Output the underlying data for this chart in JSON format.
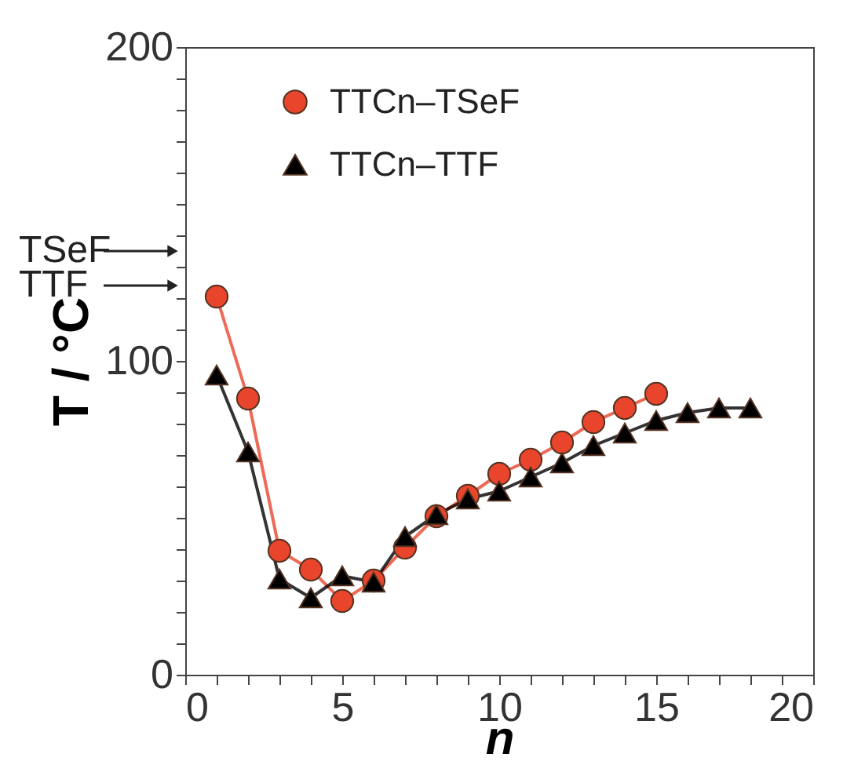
{
  "chart_data": {
    "type": "line",
    "xlabel": "n",
    "ylabel": "T / °C",
    "xlim": [
      0,
      20
    ],
    "ylim": [
      0,
      200
    ],
    "xticks": [
      0,
      {
        "value": 1,
        "label": null
      },
      {
        "value": 2,
        "label": null
      },
      {
        "value": 3,
        "label": null
      },
      {
        "value": 4,
        "label": null
      },
      5,
      {
        "value": 6,
        "label": null
      },
      {
        "value": 7,
        "label": null
      },
      {
        "value": 8,
        "label": null
      },
      {
        "value": 9,
        "label": null
      },
      10,
      {
        "value": 11,
        "label": null
      },
      {
        "value": 12,
        "label": null
      },
      {
        "value": 13,
        "label": null
      },
      {
        "value": 14,
        "label": null
      },
      15,
      {
        "value": 16,
        "label": null
      },
      {
        "value": 17,
        "label": null
      },
      {
        "value": 18,
        "label": null
      },
      {
        "value": 19,
        "label": null
      },
      20
    ],
    "yticks": [
      0,
      {
        "value": 10,
        "label": null
      },
      {
        "value": 20,
        "label": null
      },
      {
        "value": 30,
        "label": null
      },
      {
        "value": 40,
        "label": null
      },
      {
        "value": 50,
        "label": null
      },
      {
        "value": 60,
        "label": null
      },
      {
        "value": 70,
        "label": null
      },
      {
        "value": 80,
        "label": null
      },
      {
        "value": 90,
        "label": null
      },
      100,
      {
        "value": 110,
        "label": null
      },
      {
        "value": 120,
        "label": null
      },
      {
        "value": 130,
        "label": null
      },
      {
        "value": 140,
        "label": null
      },
      {
        "value": 150,
        "label": null
      },
      {
        "value": 160,
        "label": null
      },
      {
        "value": 170,
        "label": null
      },
      {
        "value": 180,
        "label": null
      },
      {
        "value": 190,
        "label": null
      },
      200
    ],
    "grid": false,
    "legend": "top",
    "series": [
      {
        "name": "TTCn–TSeF",
        "color": "#e8452c",
        "marker": "circle",
        "x": [
          1,
          2,
          3,
          4,
          5,
          6,
          7,
          8,
          9,
          10,
          11,
          12,
          13,
          14,
          15
        ],
        "values": [
          120.5,
          88,
          39.5,
          33.5,
          23.5,
          30,
          40.5,
          50.5,
          57,
          64,
          68.5,
          74,
          80.5,
          85,
          89.5
        ]
      },
      {
        "name": "TTCn–TTF",
        "color": "#000000",
        "marker": "triangle",
        "x": [
          1,
          2,
          3,
          4,
          5,
          6,
          7,
          8,
          9,
          10,
          11,
          12,
          13,
          14,
          15,
          16,
          17,
          18
        ],
        "values": [
          95.5,
          71,
          30.5,
          24.5,
          31.5,
          29.5,
          44,
          51,
          56,
          58.5,
          63,
          67.5,
          73,
          77,
          81,
          83.5,
          85,
          85
        ]
      }
    ],
    "annotations": [
      "TSeF",
      "TTF"
    ]
  }
}
